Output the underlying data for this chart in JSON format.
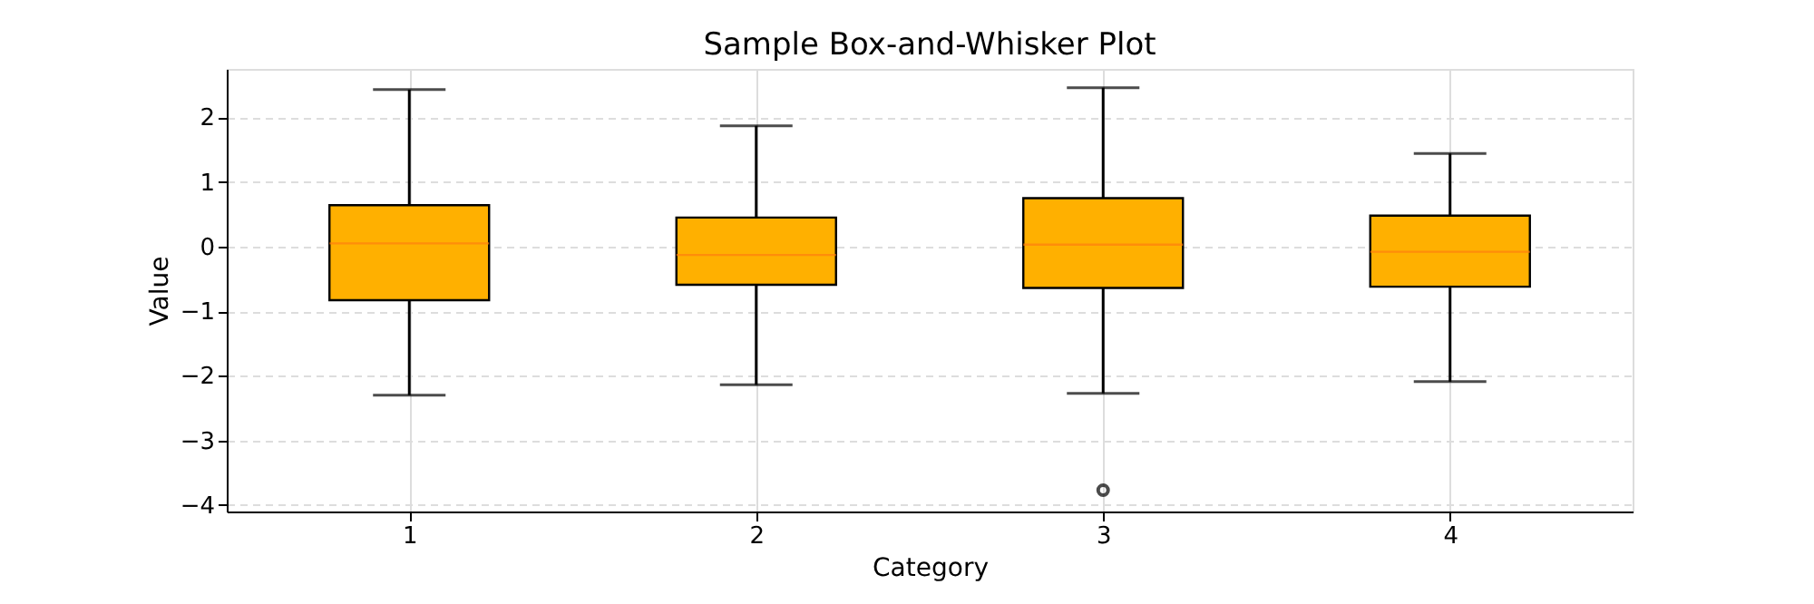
{
  "chart_data": {
    "type": "box",
    "title": "Sample Box-and-Whisker Plot",
    "xlabel": "Category",
    "ylabel": "Value",
    "categories": [
      "1",
      "2",
      "3",
      "4"
    ],
    "boxes": [
      {
        "low": -2.3,
        "q1": -0.83,
        "median": 0.05,
        "q3": 0.64,
        "high": 2.43
      },
      {
        "low": -2.14,
        "q1": -0.59,
        "median": -0.13,
        "q3": 0.45,
        "high": 1.87
      },
      {
        "low": -2.27,
        "q1": -0.64,
        "median": 0.03,
        "q3": 0.75,
        "high": 2.46,
        "outliers": [
          -3.77
        ]
      },
      {
        "low": -2.09,
        "q1": -0.62,
        "median": -0.08,
        "q3": 0.48,
        "high": 1.44
      }
    ],
    "color": "#ffb000",
    "ylim": [
      -4.1,
      2.75
    ],
    "yticks": [
      -4,
      -3,
      -2,
      -1,
      0,
      1,
      2
    ],
    "grid": true
  }
}
